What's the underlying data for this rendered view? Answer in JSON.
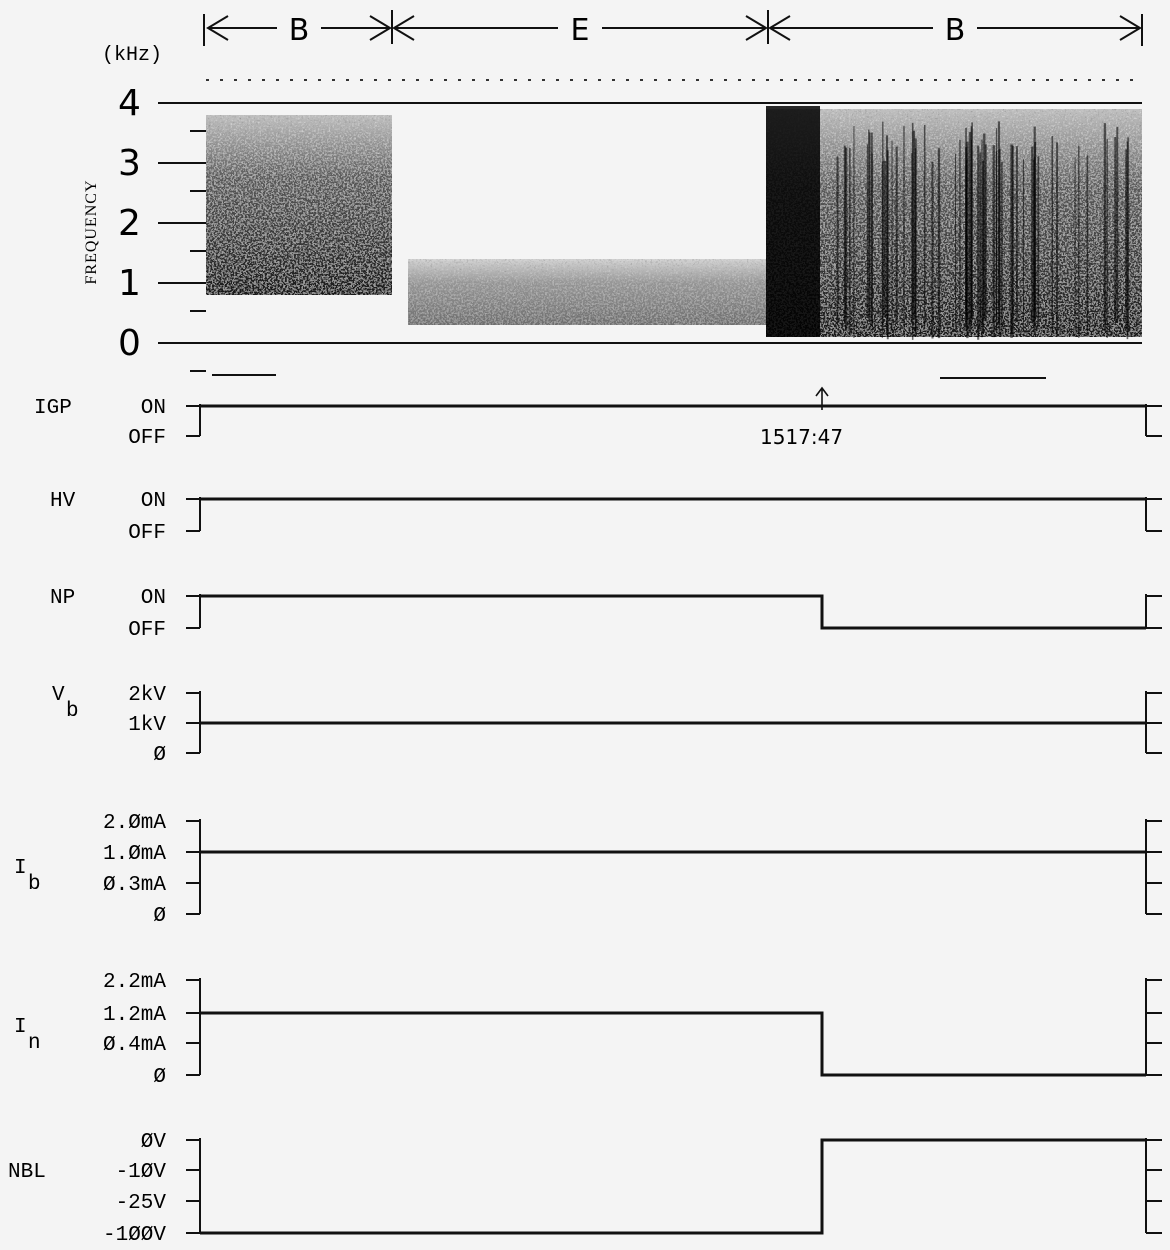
{
  "chart_data": {
    "type": "line",
    "time_marker": "1517:47",
    "spectrogram": {
      "y_unit": "(kHz)",
      "y_axis_label": "FREQUENCY",
      "y_ticks": [
        "0",
        "1",
        "2",
        "3",
        "4"
      ],
      "ylim": [
        0,
        4
      ],
      "segments": [
        {
          "label": "B",
          "freq_low": 0.8,
          "freq_high": 3.8,
          "intensity": "strong"
        },
        {
          "label": "E",
          "freq_low": 0.3,
          "freq_high": 1.4,
          "intensity": "moderate"
        },
        {
          "label": "B",
          "freq_low": 0.1,
          "freq_high": 3.9,
          "intensity": "strong"
        }
      ]
    },
    "panels": [
      {
        "name": "IGP",
        "sub": "",
        "ticks": [
          "ON",
          "OFF"
        ],
        "level_before": "ON",
        "level_after": "ON"
      },
      {
        "name": "HV",
        "sub": "",
        "ticks": [
          "ON",
          "OFF"
        ],
        "level_before": "ON",
        "level_after": "ON"
      },
      {
        "name": "NP",
        "sub": "",
        "ticks": [
          "ON",
          "OFF"
        ],
        "level_before": "ON",
        "level_after": "OFF"
      },
      {
        "name": "V",
        "sub": "b",
        "ticks": [
          "2kV",
          "1kV",
          "Ø"
        ],
        "level_before": "1kV",
        "level_after": "1kV"
      },
      {
        "name": "I",
        "sub": "b",
        "ticks": [
          "2.ØmA",
          "1.ØmA",
          "Ø.3mA",
          "Ø"
        ],
        "level_before": "1.ØmA",
        "level_after": "1.ØmA"
      },
      {
        "name": "I",
        "sub": "n",
        "ticks": [
          "2.2mA",
          "1.2mA",
          "Ø.4mA",
          "Ø"
        ],
        "level_before": "1.2mA",
        "level_after": "Ø"
      },
      {
        "name": "NBL",
        "sub": "",
        "ticks": [
          "ØV",
          "-1ØV",
          "-25V",
          "-1ØØV"
        ],
        "level_before": "-1ØØV",
        "level_after": "ØV"
      }
    ]
  }
}
